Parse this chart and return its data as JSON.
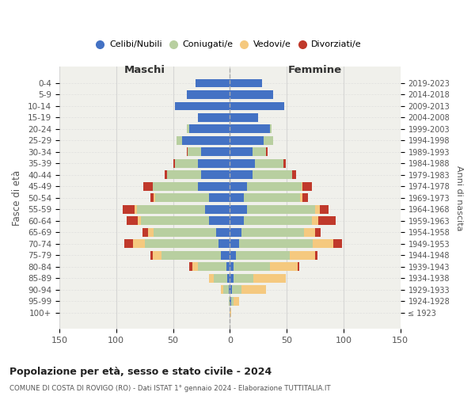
{
  "age_groups": [
    "100+",
    "95-99",
    "90-94",
    "85-89",
    "80-84",
    "75-79",
    "70-74",
    "65-69",
    "60-64",
    "55-59",
    "50-54",
    "45-49",
    "40-44",
    "35-39",
    "30-34",
    "25-29",
    "20-24",
    "15-19",
    "10-14",
    "5-9",
    "0-4"
  ],
  "birth_years": [
    "≤ 1923",
    "1924-1928",
    "1929-1933",
    "1934-1938",
    "1939-1943",
    "1944-1948",
    "1949-1953",
    "1954-1958",
    "1959-1963",
    "1964-1968",
    "1969-1973",
    "1974-1978",
    "1979-1983",
    "1984-1988",
    "1989-1993",
    "1994-1998",
    "1999-2003",
    "2004-2008",
    "2009-2013",
    "2014-2018",
    "2019-2023"
  ],
  "colors": {
    "celibe": "#4472c4",
    "coniugato": "#b8cfa0",
    "vedovo": "#f5c97f",
    "divorziato": "#c0392b"
  },
  "males": {
    "celibe": [
      0,
      0,
      1,
      2,
      3,
      8,
      10,
      12,
      18,
      22,
      18,
      28,
      25,
      28,
      25,
      42,
      36,
      28,
      48,
      38,
      30
    ],
    "coniugato": [
      0,
      1,
      5,
      12,
      25,
      52,
      65,
      55,
      60,
      60,
      48,
      40,
      30,
      20,
      12,
      5,
      2,
      0,
      0,
      0,
      0
    ],
    "vedovo": [
      0,
      0,
      2,
      4,
      5,
      8,
      10,
      5,
      3,
      2,
      1,
      0,
      0,
      0,
      0,
      0,
      0,
      0,
      0,
      0,
      0
    ],
    "divorziato": [
      0,
      0,
      0,
      0,
      3,
      2,
      8,
      5,
      10,
      10,
      3,
      8,
      2,
      2,
      1,
      0,
      0,
      0,
      0,
      0,
      0
    ]
  },
  "females": {
    "nubile": [
      0,
      1,
      2,
      3,
      3,
      5,
      8,
      10,
      12,
      15,
      12,
      15,
      20,
      22,
      20,
      30,
      35,
      25,
      48,
      38,
      28
    ],
    "coniugata": [
      0,
      2,
      8,
      18,
      32,
      48,
      65,
      55,
      60,
      60,
      50,
      48,
      35,
      25,
      12,
      8,
      2,
      0,
      0,
      0,
      0
    ],
    "vedova": [
      1,
      5,
      22,
      28,
      25,
      22,
      18,
      10,
      6,
      4,
      2,
      1,
      0,
      0,
      0,
      0,
      0,
      0,
      0,
      0,
      0
    ],
    "divorziata": [
      0,
      0,
      0,
      0,
      1,
      2,
      8,
      5,
      15,
      8,
      5,
      8,
      3,
      2,
      1,
      0,
      0,
      0,
      0,
      0,
      0
    ]
  },
  "xlim": 150,
  "title": "Popolazione per età, sesso e stato civile - 2024",
  "subtitle": "COMUNE DI COSTA DI ROVIGO (RO) - Dati ISTAT 1° gennaio 2024 - Elaborazione TUTTITALIA.IT",
  "ylabel_left": "Fasce di età",
  "ylabel_right": "Anni di nascita",
  "xlabel_left": "Maschi",
  "xlabel_right": "Femmine",
  "legend_labels": [
    "Celibi/Nubili",
    "Coniugati/e",
    "Vedovi/e",
    "Divorziati/e"
  ],
  "bg_color": "#f0f0eb",
  "grid_color": "#cccccc"
}
